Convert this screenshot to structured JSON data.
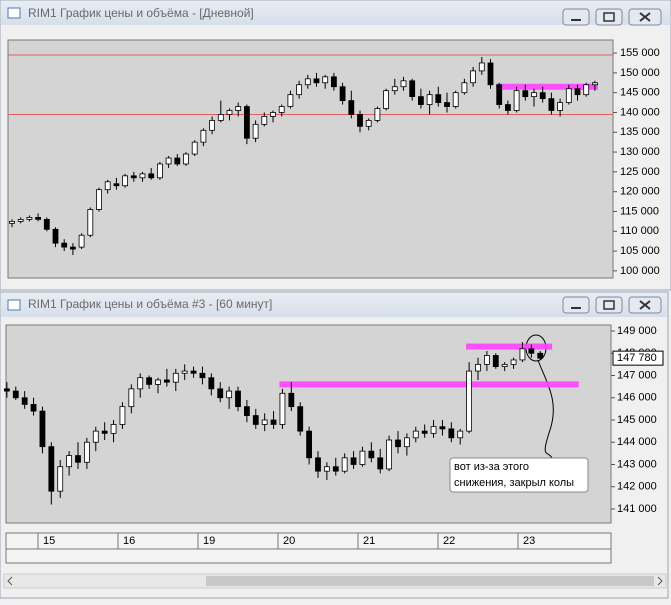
{
  "chart_data": [
    {
      "type": "candlestick",
      "title": "RIM1 График цены и объёма - [Дневной]",
      "ylim": [
        98200,
        158300
      ],
      "yticks": [
        {
          "value": 100000,
          "label": "100 000"
        },
        {
          "value": 105000,
          "label": "105 000"
        },
        {
          "value": 110000,
          "label": "110 000"
        },
        {
          "value": 115000,
          "label": "115 000"
        },
        {
          "value": 120000,
          "label": "120 000"
        },
        {
          "value": 125000,
          "label": "125 000"
        },
        {
          "value": 130000,
          "label": "130 000"
        },
        {
          "value": 135000,
          "label": "135 000"
        },
        {
          "value": 140000,
          "label": "140 000"
        },
        {
          "value": 145000,
          "label": "145 000"
        },
        {
          "value": 150000,
          "label": "150 000"
        },
        {
          "value": 155000,
          "label": "155 000"
        }
      ],
      "hlines": [
        {
          "value": 154500,
          "color": "#e06060"
        },
        {
          "value": 139500,
          "color": "#e06060"
        }
      ],
      "bands": [
        {
          "value": 146500,
          "start": 56,
          "end": 67,
          "color": "#ff40ff"
        }
      ],
      "ohlc": [
        [
          112000,
          113000,
          111000,
          112500
        ],
        [
          112500,
          113500,
          112000,
          113000
        ],
        [
          113000,
          114000,
          112500,
          113500
        ],
        [
          113500,
          114500,
          112500,
          113000
        ],
        [
          113000,
          113500,
          110000,
          110500
        ],
        [
          110500,
          111000,
          106000,
          107000
        ],
        [
          107000,
          108000,
          105000,
          106000
        ],
        [
          106000,
          107000,
          104000,
          105500
        ],
        [
          106000,
          109500,
          105500,
          109000
        ],
        [
          109000,
          116000,
          108500,
          115500
        ],
        [
          115500,
          121000,
          115000,
          120500
        ],
        [
          120500,
          123000,
          119500,
          122500
        ],
        [
          122000,
          123500,
          120500,
          121500
        ],
        [
          121500,
          124500,
          121000,
          124000
        ],
        [
          124000,
          125000,
          122500,
          123500
        ],
        [
          123500,
          125000,
          122500,
          124500
        ],
        [
          124500,
          126000,
          123000,
          123500
        ],
        [
          123500,
          127500,
          123000,
          127000
        ],
        [
          127000,
          129000,
          126000,
          128500
        ],
        [
          128500,
          129500,
          126500,
          127000
        ],
        [
          127000,
          130000,
          126500,
          129500
        ],
        [
          129500,
          133000,
          129000,
          132500
        ],
        [
          132500,
          136000,
          131500,
          135500
        ],
        [
          135500,
          139000,
          134500,
          138000
        ],
        [
          138000,
          143000,
          137500,
          139500
        ],
        [
          139500,
          141000,
          138000,
          140500
        ],
        [
          140500,
          142500,
          139000,
          141500
        ],
        [
          141500,
          142000,
          132000,
          133500
        ],
        [
          133500,
          138000,
          132500,
          137000
        ],
        [
          137000,
          140000,
          136500,
          139000
        ],
        [
          139000,
          140500,
          137500,
          140000
        ],
        [
          140000,
          142000,
          139000,
          141500
        ],
        [
          141500,
          145500,
          141000,
          144500
        ],
        [
          144500,
          148000,
          143500,
          147000
        ],
        [
          147000,
          149500,
          146000,
          148500
        ],
        [
          148500,
          150000,
          146500,
          147500
        ],
        [
          147500,
          149500,
          146000,
          149000
        ],
        [
          149000,
          150000,
          145500,
          146500
        ],
        [
          146500,
          147500,
          142000,
          143000
        ],
        [
          143000,
          145500,
          138500,
          139500
        ],
        [
          139500,
          140500,
          135000,
          136500
        ],
        [
          136500,
          138500,
          135500,
          138000
        ],
        [
          138000,
          141500,
          137500,
          141000
        ],
        [
          141000,
          146000,
          140500,
          145500
        ],
        [
          145500,
          148500,
          144500,
          146500
        ],
        [
          146500,
          149000,
          145500,
          148000
        ],
        [
          148000,
          148500,
          143000,
          144000
        ],
        [
          144000,
          146000,
          141000,
          142000
        ],
        [
          142000,
          145500,
          139500,
          144500
        ],
        [
          144500,
          146500,
          141500,
          142500
        ],
        [
          142500,
          145000,
          140000,
          141500
        ],
        [
          141500,
          145500,
          141000,
          145000
        ],
        [
          145000,
          148500,
          144500,
          147500
        ],
        [
          147500,
          151500,
          146500,
          150500
        ],
        [
          150500,
          154000,
          149500,
          152500
        ],
        [
          152500,
          153500,
          146000,
          147000
        ],
        [
          147000,
          147500,
          141000,
          142000
        ],
        [
          142000,
          143000,
          139500,
          140500
        ],
        [
          140500,
          146500,
          140000,
          145500
        ],
        [
          145500,
          147000,
          143000,
          144000
        ],
        [
          144000,
          146000,
          141500,
          145000
        ],
        [
          145000,
          146500,
          142500,
          143500
        ],
        [
          143500,
          145000,
          139500,
          140500
        ],
        [
          140500,
          143500,
          139000,
          142500
        ],
        [
          142500,
          147000,
          142000,
          146000
        ],
        [
          146000,
          147000,
          143000,
          144500
        ],
        [
          144500,
          147500,
          144000,
          147000
        ],
        [
          147000,
          148000,
          145500,
          147500
        ]
      ]
    },
    {
      "type": "candlestick",
      "title": "RIM1 График цены и объёма #3 - [60 минут]",
      "ylim": [
        140370,
        149270
      ],
      "yticks": [
        {
          "value": 141000,
          "label": "141 000"
        },
        {
          "value": 142000,
          "label": "142 000"
        },
        {
          "value": 143000,
          "label": "143 000"
        },
        {
          "value": 144000,
          "label": "144 000"
        },
        {
          "value": 145000,
          "label": "145 000"
        },
        {
          "value": 146000,
          "label": "146 000"
        },
        {
          "value": 147000,
          "label": "147 000"
        },
        {
          "value": 148000,
          "label": "148 000"
        },
        {
          "value": 149000,
          "label": "149 000"
        }
      ],
      "last_price": {
        "value": 147780,
        "label": "147 780"
      },
      "bands": [
        {
          "value": 148300,
          "start": 52,
          "end": 61,
          "color": "#ff40ff"
        },
        {
          "value": 146600,
          "start": 31,
          "end": 64,
          "color": "#ff40ff"
        }
      ],
      "annotation": [
        "вот из-за этого",
        "снижения, закрыл колы"
      ],
      "categories": [
        null,
        null,
        null,
        null,
        "15",
        null,
        null,
        null,
        null,
        null,
        null,
        null,
        null,
        "16",
        null,
        null,
        null,
        null,
        null,
        null,
        null,
        null,
        "19",
        null,
        null,
        null,
        null,
        null,
        null,
        null,
        null,
        "20",
        null,
        null,
        null,
        null,
        null,
        null,
        null,
        null,
        "21",
        null,
        null,
        null,
        null,
        null,
        null,
        null,
        null,
        "22",
        null,
        null,
        null,
        null,
        null,
        null,
        null,
        null,
        "23",
        null,
        null
      ],
      "ohlc": [
        [
          146400,
          146700,
          146000,
          146300
        ],
        [
          146300,
          146500,
          145900,
          146000
        ],
        [
          146000,
          146300,
          145500,
          145700
        ],
        [
          145700,
          146000,
          145200,
          145400
        ],
        [
          145400,
          145600,
          143500,
          143800
        ],
        [
          143800,
          144000,
          141200,
          141800
        ],
        [
          141800,
          143200,
          141500,
          142900
        ],
        [
          142900,
          143600,
          142500,
          143400
        ],
        [
          143400,
          144000,
          142800,
          143100
        ],
        [
          143100,
          144200,
          142800,
          144000
        ],
        [
          144000,
          144700,
          143600,
          144500
        ],
        [
          144500,
          144900,
          144100,
          144400
        ],
        [
          144400,
          145000,
          144000,
          144800
        ],
        [
          144800,
          145800,
          144600,
          145600
        ],
        [
          145600,
          146600,
          145300,
          146400
        ],
        [
          146400,
          147100,
          146000,
          146900
        ],
        [
          146900,
          147000,
          146400,
          146600
        ],
        [
          146600,
          146900,
          146200,
          146800
        ],
        [
          146800,
          147300,
          146500,
          146700
        ],
        [
          146700,
          147300,
          146300,
          147100
        ],
        [
          147100,
          147500,
          146800,
          147200
        ],
        [
          147200,
          147400,
          146900,
          147100
        ],
        [
          147100,
          147400,
          146600,
          146900
        ],
        [
          146900,
          147100,
          146100,
          146400
        ],
        [
          146400,
          146700,
          145800,
          146000
        ],
        [
          146000,
          146500,
          145500,
          146300
        ],
        [
          146300,
          146500,
          145400,
          145600
        ],
        [
          145600,
          145900,
          144900,
          145200
        ],
        [
          145200,
          145500,
          144600,
          144800
        ],
        [
          144800,
          145300,
          144500,
          145000
        ],
        [
          145000,
          145400,
          144600,
          144800
        ],
        [
          144800,
          146400,
          144600,
          146200
        ],
        [
          146200,
          146700,
          145400,
          145600
        ],
        [
          145600,
          145800,
          144300,
          144500
        ],
        [
          144500,
          144700,
          143000,
          143300
        ],
        [
          143300,
          143600,
          142400,
          142700
        ],
        [
          142700,
          143100,
          142300,
          142900
        ],
        [
          142900,
          143300,
          142500,
          142700
        ],
        [
          142700,
          143500,
          142600,
          143300
        ],
        [
          143300,
          143600,
          142800,
          143000
        ],
        [
          143000,
          143800,
          142900,
          143600
        ],
        [
          143600,
          144000,
          143100,
          143300
        ],
        [
          143300,
          143700,
          142600,
          142800
        ],
        [
          142800,
          144300,
          142700,
          144100
        ],
        [
          144100,
          144500,
          143500,
          143800
        ],
        [
          143800,
          144400,
          143400,
          144200
        ],
        [
          144200,
          144700,
          144000,
          144500
        ],
        [
          144500,
          144800,
          144200,
          144400
        ],
        [
          144400,
          145000,
          144200,
          144700
        ],
        [
          144700,
          145000,
          144300,
          144600
        ],
        [
          144600,
          144900,
          144000,
          144200
        ],
        [
          144200,
          144600,
          143900,
          144500
        ],
        [
          144500,
          147600,
          144400,
          147200
        ],
        [
          147200,
          147800,
          146800,
          147500
        ],
        [
          147500,
          148100,
          147200,
          147900
        ],
        [
          147900,
          148000,
          147300,
          147400
        ],
        [
          147400,
          147600,
          147200,
          147500
        ],
        [
          147500,
          147800,
          147300,
          147700
        ],
        [
          147700,
          148500,
          147600,
          148200
        ],
        [
          148200,
          148400,
          147800,
          148000
        ],
        [
          148000,
          148100,
          147700,
          147780
        ]
      ]
    }
  ]
}
